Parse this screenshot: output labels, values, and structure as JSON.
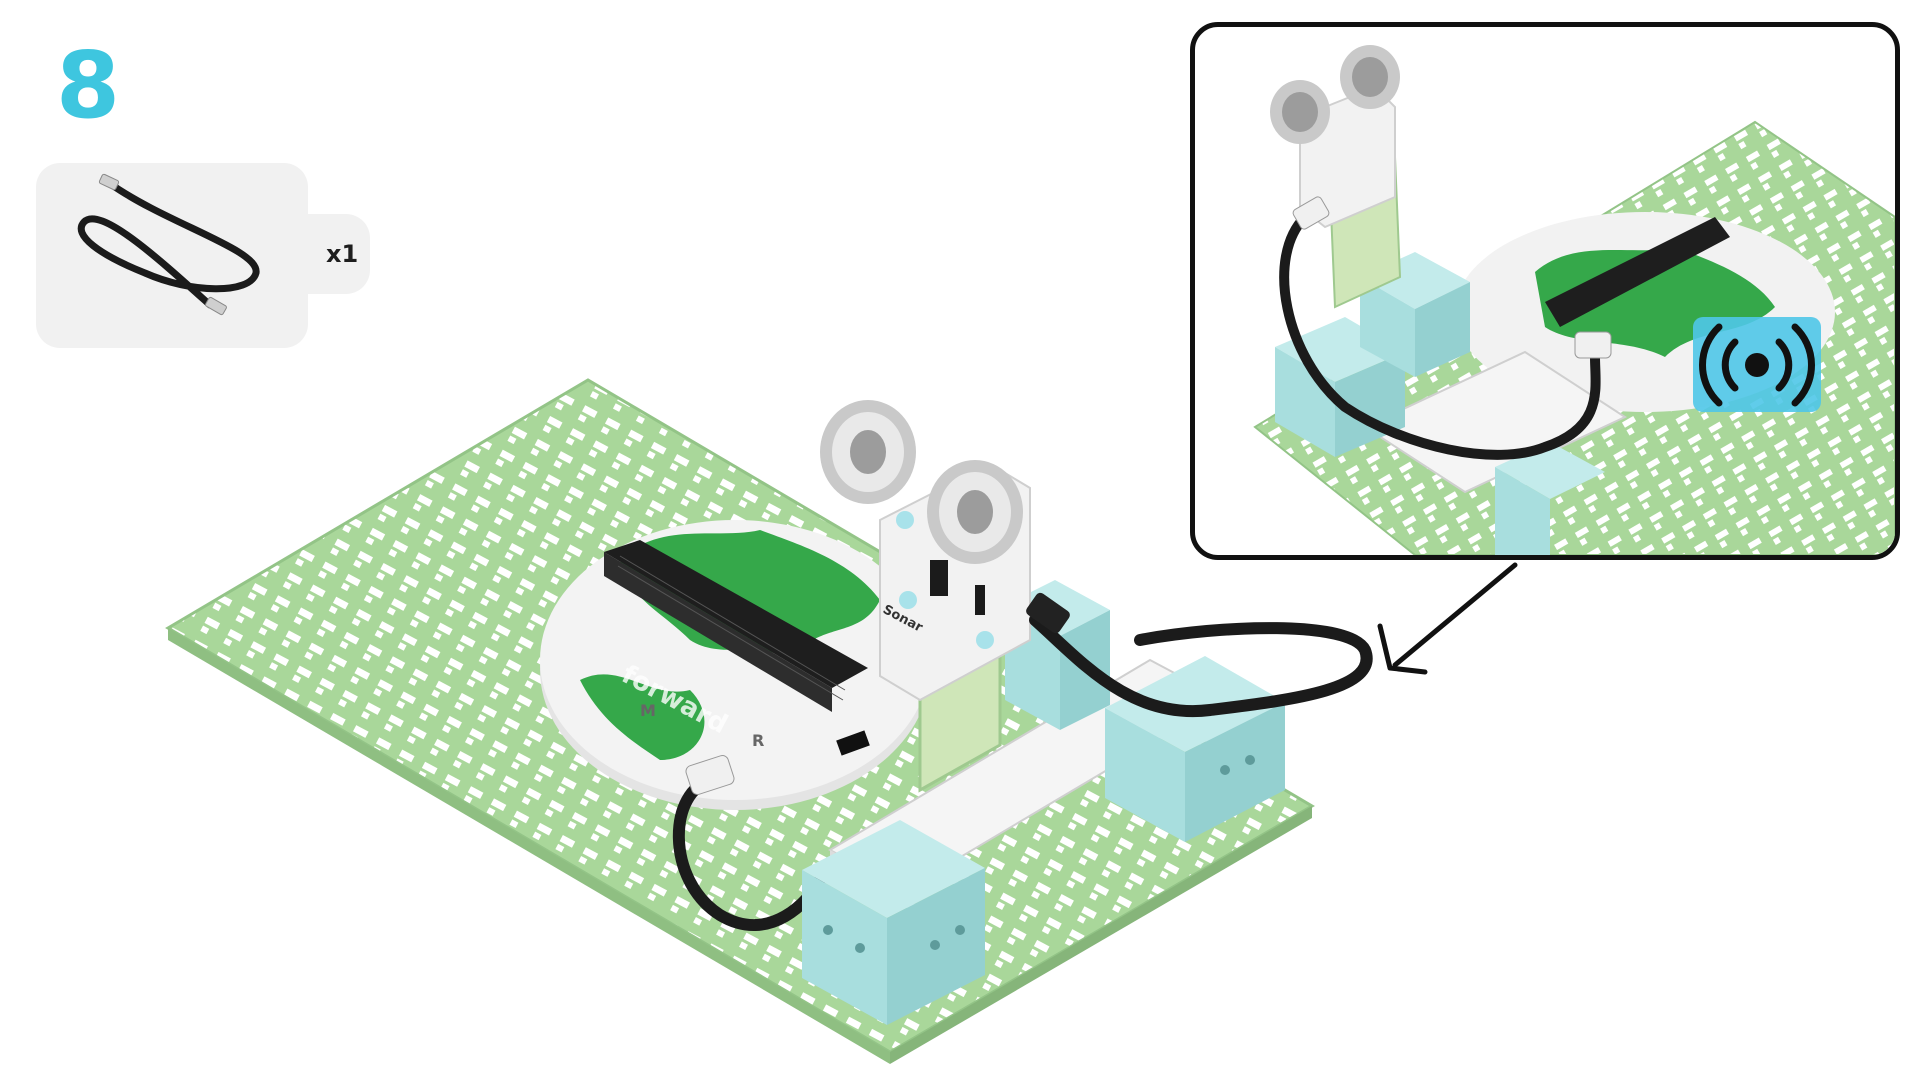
{
  "step": {
    "number": "8"
  },
  "parts": [
    {
      "name": "USB cable",
      "icon": "cable-icon",
      "quantity": "x1"
    }
  ],
  "main_model": {
    "sensor_label": "Sonar",
    "board_label": "forward",
    "board_markings": [
      "M",
      "R"
    ]
  },
  "detail_view": {
    "badge_icon": "wireless-signal-icon",
    "arrow_icon": "arrow-icon"
  },
  "colors": {
    "step_number": "#3ec6df",
    "baseplate": "#a9d79a",
    "cube": "#a8dede",
    "board_green": "#35a84a",
    "cable": "#1b1b1b",
    "badge": "#4fc6e8"
  }
}
